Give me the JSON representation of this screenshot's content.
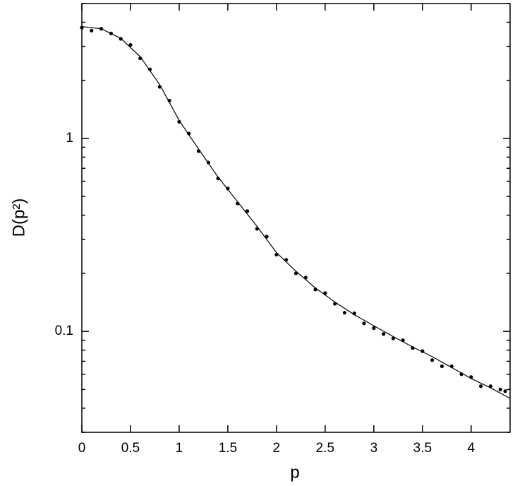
{
  "chart_data": {
    "type": "scatter",
    "xlabel": "p",
    "ylabel": "D(p²)",
    "xlim": [
      0,
      4.4
    ],
    "xticks": [
      0,
      0.5,
      1,
      1.5,
      2,
      2.5,
      3,
      3.5,
      4
    ],
    "ylim": [
      0.03,
      5
    ],
    "yscale": "log",
    "yticks": [
      0.1,
      1
    ],
    "yminorticks": [
      0.03,
      0.04,
      0.05,
      0.06,
      0.07,
      0.08,
      0.09,
      0.2,
      0.3,
      0.4,
      0.5,
      0.6,
      0.7,
      0.8,
      0.9,
      2,
      3,
      4,
      5
    ],
    "series": [
      {
        "style": "markers",
        "color": "#000000",
        "x": [
          0,
          0.1,
          0.2,
          0.3,
          0.4,
          0.5,
          0.6,
          0.7,
          0.8,
          0.9,
          1.0,
          1.1,
          1.2,
          1.3,
          1.4,
          1.5,
          1.6,
          1.7,
          1.8,
          1.9,
          2.0,
          2.1,
          2.2,
          2.3,
          2.4,
          2.5,
          2.6,
          2.7,
          2.8,
          2.9,
          3.0,
          3.1,
          3.2,
          3.3,
          3.4,
          3.5,
          3.6,
          3.7,
          3.8,
          3.9,
          4.0,
          4.1,
          4.2,
          4.3,
          4.35
        ],
        "values": [
          3.75,
          3.62,
          3.7,
          3.5,
          3.28,
          3.05,
          2.6,
          2.28,
          1.85,
          1.57,
          1.22,
          1.06,
          0.86,
          0.75,
          0.62,
          0.55,
          0.46,
          0.42,
          0.34,
          0.31,
          0.25,
          0.235,
          0.2,
          0.19,
          0.165,
          0.158,
          0.139,
          0.125,
          0.124,
          0.11,
          0.104,
          0.097,
          0.092,
          0.09,
          0.082,
          0.079,
          0.071,
          0.066,
          0.066,
          0.06,
          0.058,
          0.052,
          0.052,
          0.05,
          0.049
        ]
      },
      {
        "style": "line",
        "color": "#000000",
        "x": [
          0,
          0.2,
          0.4,
          0.6,
          0.8,
          1.0,
          1.2,
          1.4,
          1.6,
          1.8,
          2.0,
          2.2,
          2.4,
          2.6,
          2.8,
          3.0,
          3.2,
          3.4,
          3.6,
          3.8,
          4.0,
          4.2,
          4.4
        ],
        "values": [
          3.8,
          3.7,
          3.3,
          2.65,
          1.9,
          1.24,
          0.88,
          0.63,
          0.47,
          0.35,
          0.256,
          0.205,
          0.168,
          0.142,
          0.122,
          0.107,
          0.094,
          0.083,
          0.074,
          0.065,
          0.057,
          0.051,
          0.045
        ]
      }
    ]
  }
}
